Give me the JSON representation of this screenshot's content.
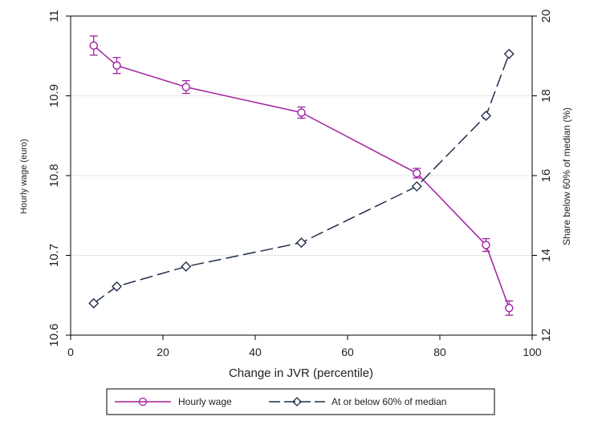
{
  "chart_data": {
    "type": "line",
    "x_title": "Change in JVR (percentile)",
    "y_left_title": "Hourly wage (euro)",
    "y_right_title": "Share below 60% of median (%)",
    "x_range": [
      0,
      100
    ],
    "x_ticks": [
      0,
      20,
      40,
      60,
      80,
      100
    ],
    "y_left_range": [
      10.6,
      11.0
    ],
    "y_left_ticks": [
      10.6,
      10.7,
      10.8,
      10.9,
      11
    ],
    "y_right_range": [
      12,
      20
    ],
    "y_right_ticks": [
      12,
      14,
      16,
      18,
      20
    ],
    "grid": "horizontal",
    "legend_position": "bottom",
    "series": [
      {
        "name": "Hourly wage",
        "axis": "left",
        "color": "#a020a0",
        "line_style": "solid",
        "marker": "circle",
        "points": [
          {
            "x": 5,
            "y": 10.963,
            "lo": 10.951,
            "hi": 10.975
          },
          {
            "x": 10,
            "y": 10.938,
            "lo": 10.928,
            "hi": 10.948
          },
          {
            "x": 25,
            "y": 10.911,
            "lo": 10.903,
            "hi": 10.919
          },
          {
            "x": 50,
            "y": 10.879,
            "lo": 10.872,
            "hi": 10.886
          },
          {
            "x": 75,
            "y": 10.803,
            "lo": 10.797,
            "hi": 10.809
          },
          {
            "x": 90,
            "y": 10.713,
            "lo": 10.705,
            "hi": 10.721
          },
          {
            "x": 95,
            "y": 10.634,
            "lo": 10.625,
            "hi": 10.643
          }
        ]
      },
      {
        "name": "At or below 60% of median",
        "axis": "right",
        "color": "#1f2d4a",
        "line_style": "dashed",
        "marker": "diamond",
        "points": [
          {
            "x": 5,
            "y": 12.8
          },
          {
            "x": 10,
            "y": 13.22
          },
          {
            "x": 25,
            "y": 13.72
          },
          {
            "x": 50,
            "y": 14.32
          },
          {
            "x": 75,
            "y": 15.73
          },
          {
            "x": 90,
            "y": 17.5
          },
          {
            "x": 95,
            "y": 19.05
          }
        ]
      }
    ]
  }
}
